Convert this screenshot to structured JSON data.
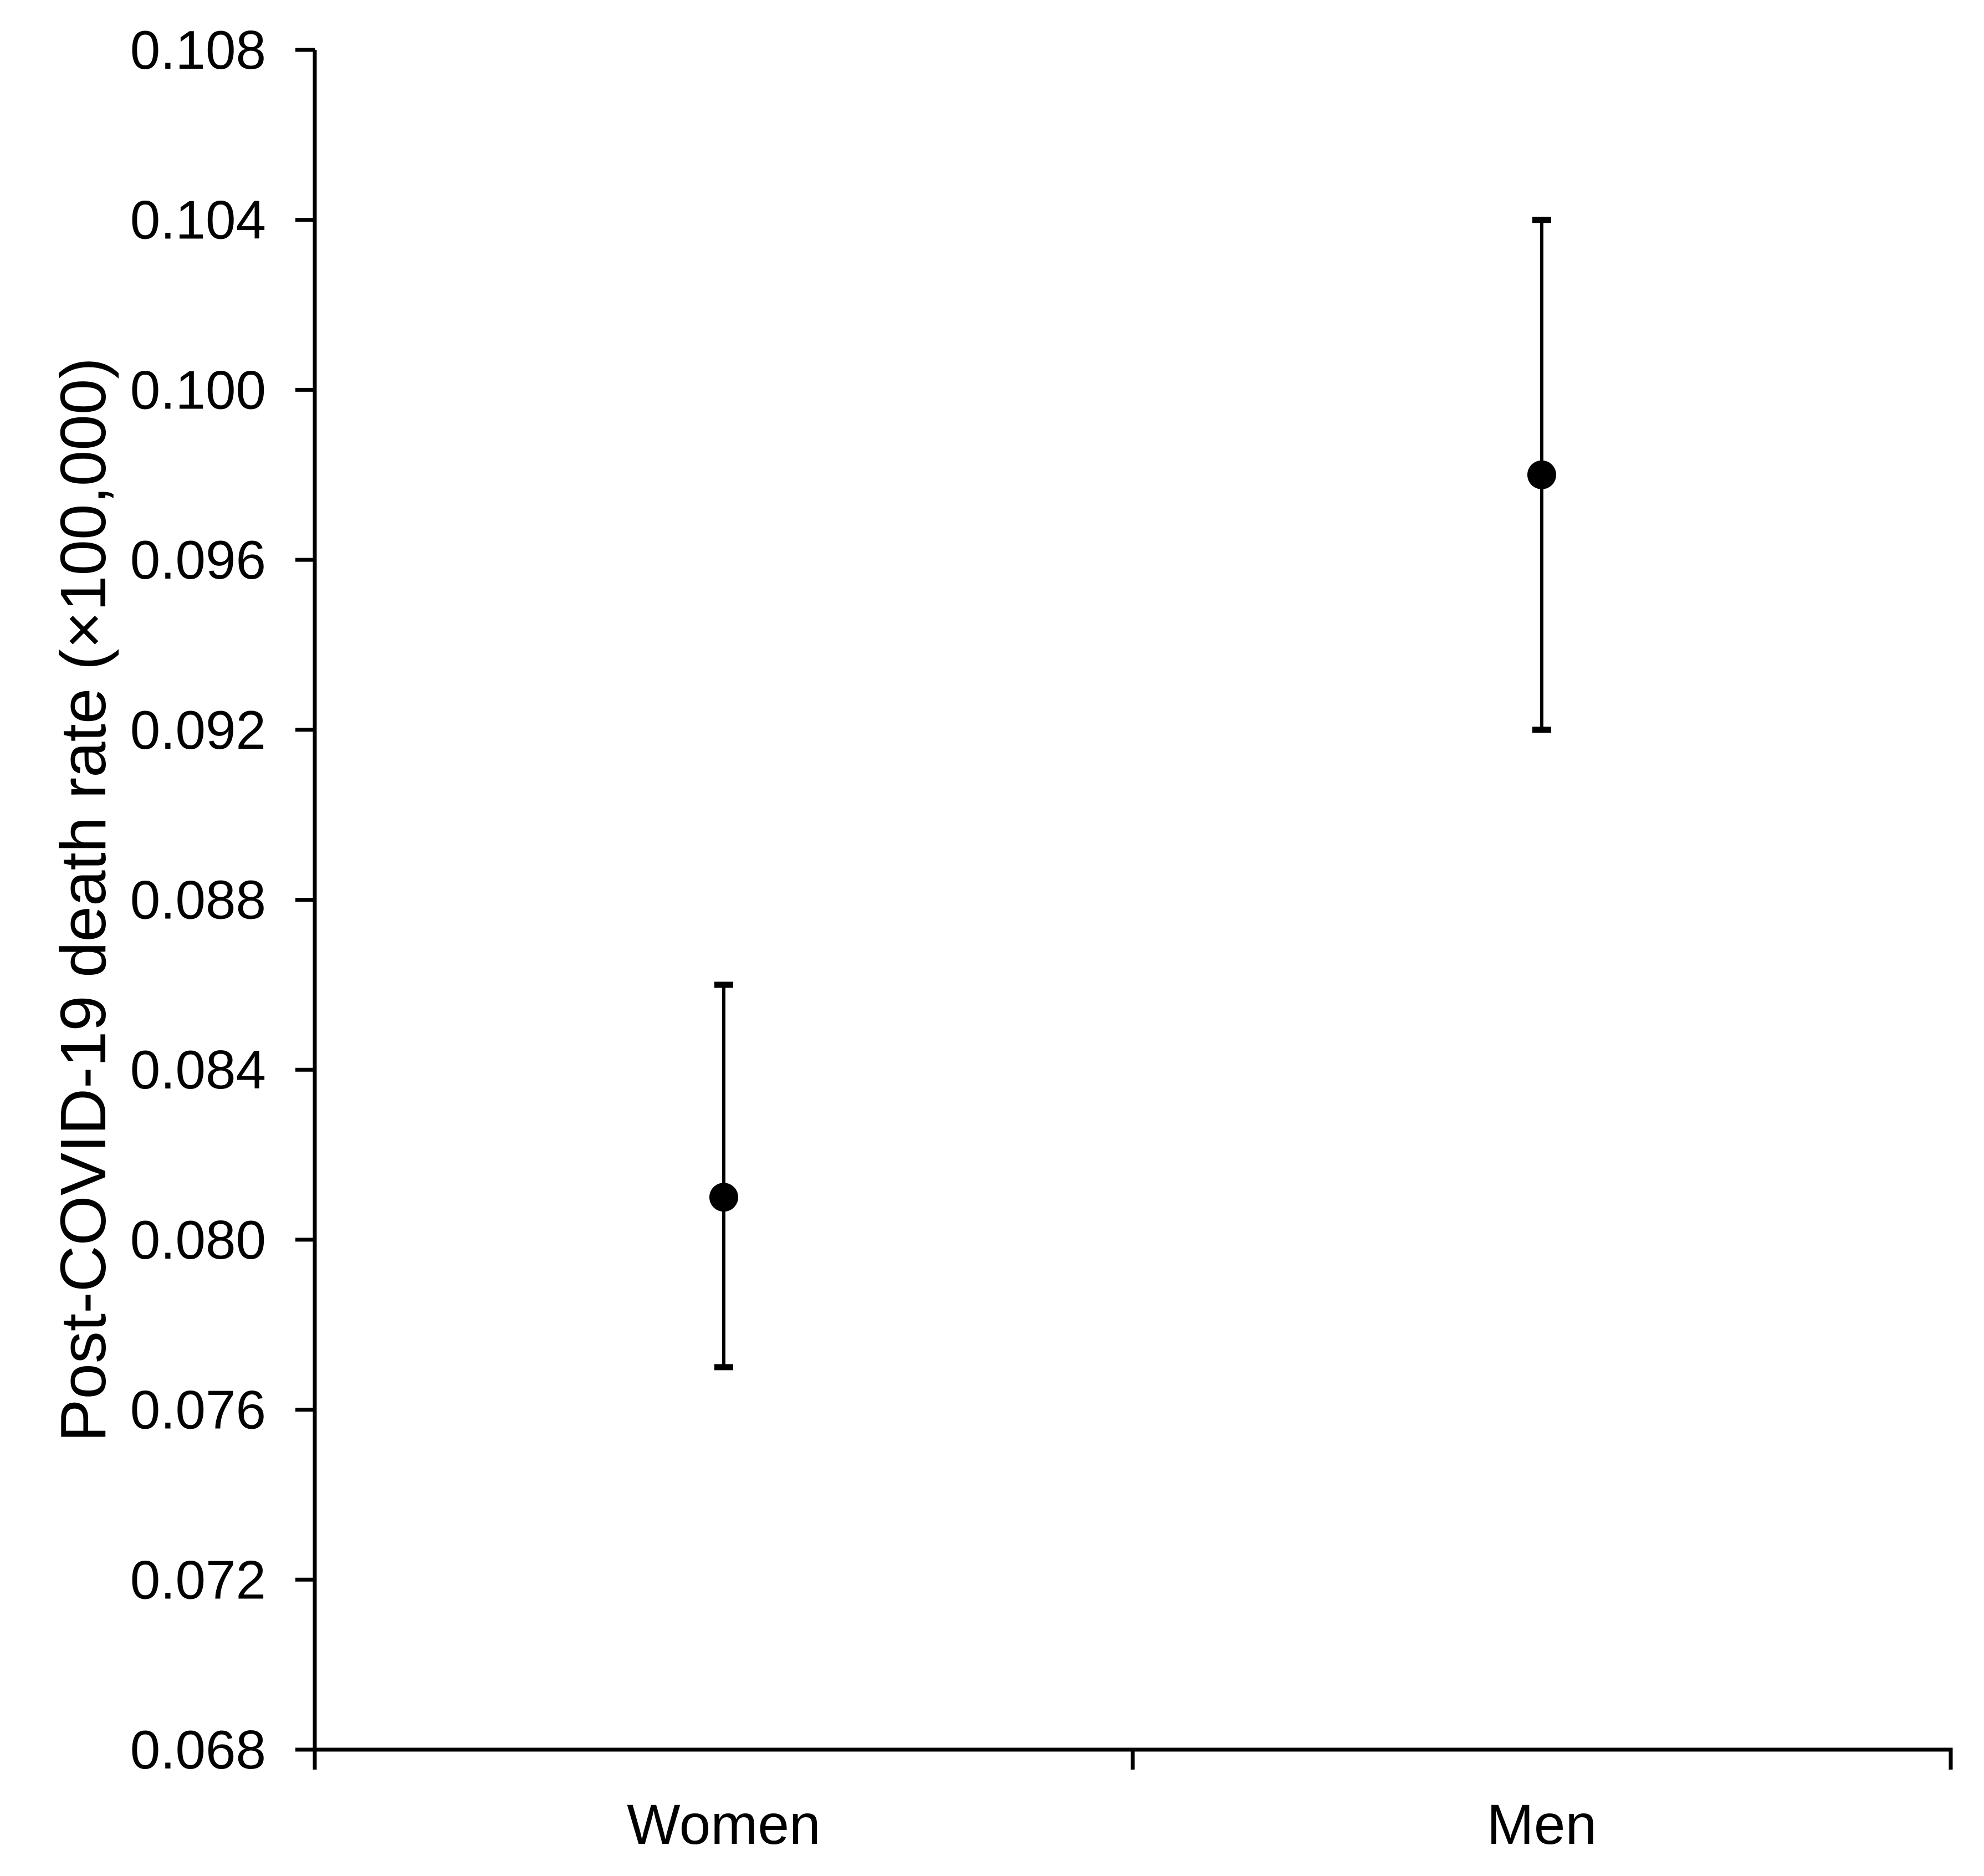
{
  "chart_data": {
    "type": "scatter",
    "title": "",
    "xlabel": "",
    "ylabel": "Post-COVID-19 death rate (×100,000)",
    "categories": [
      "Women",
      "Men"
    ],
    "series": [
      {
        "name": "Post-COVID-19 death rate",
        "marker": "circle",
        "color": "#000000",
        "points": [
          {
            "category": "Women",
            "value": 0.081,
            "ci_low": 0.077,
            "ci_high": 0.086
          },
          {
            "category": "Men",
            "value": 0.098,
            "ci_low": 0.092,
            "ci_high": 0.104
          }
        ]
      }
    ],
    "y_axis": {
      "min": 0.068,
      "max": 0.108,
      "tick_step": 0.004,
      "tick_labels": [
        "0.068",
        "0.072",
        "0.076",
        "0.080",
        "0.084",
        "0.088",
        "0.092",
        "0.096",
        "0.100",
        "0.104",
        "0.108"
      ]
    },
    "x_axis": {
      "tick_labels": [
        "Women",
        "Men"
      ]
    },
    "error_bars": true,
    "grid": false,
    "legend_position": "none",
    "axis_color": "#000000",
    "marker_color": "#000000",
    "background_color": "#ffffff"
  }
}
